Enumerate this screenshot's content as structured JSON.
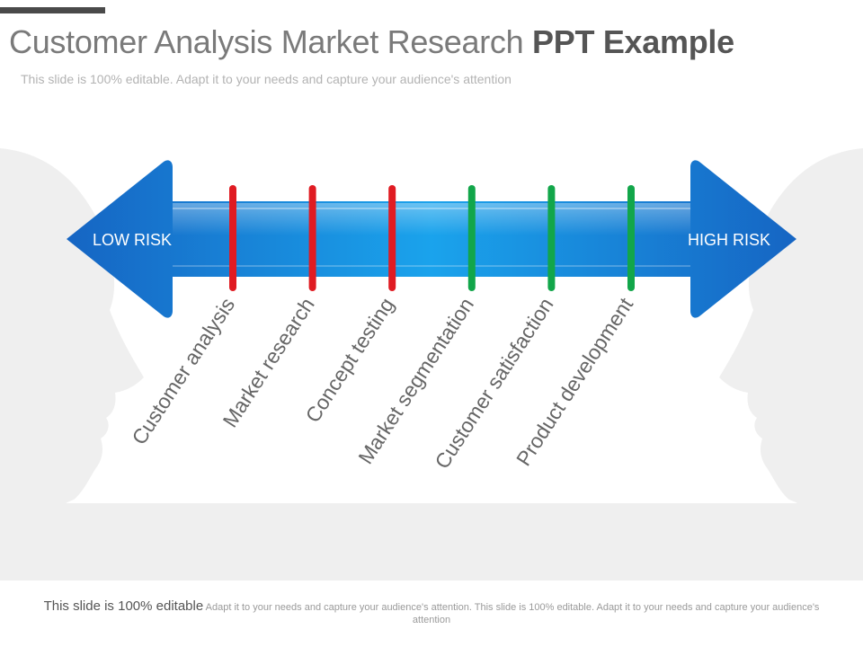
{
  "header": {
    "title_light": "Customer Analysis Market Research ",
    "title_bold": "PPT Example",
    "subtitle": "This slide is 100% editable. Adapt it to your needs and capture your audience's attention"
  },
  "arrow": {
    "left_label": "LOW RISK",
    "right_label": "HIGH RISK",
    "color": "#1a7fd4"
  },
  "stages": [
    {
      "label": "Customer analysis",
      "color": "#e01b22"
    },
    {
      "label": "Market research",
      "color": "#e01b22"
    },
    {
      "label": "Concept testing",
      "color": "#e01b22"
    },
    {
      "label": "Market segmentation",
      "color": "#12a64a"
    },
    {
      "label": "Customer satisfaction",
      "color": "#12a64a"
    },
    {
      "label": "Product development",
      "color": "#12a64a"
    }
  ],
  "footer": {
    "lead": "This slide is 100% editable",
    "rest": "Adapt it to your needs and capture your audience's attention. This slide is 100% editable. Adapt it to your needs and capture your audience's attention"
  }
}
